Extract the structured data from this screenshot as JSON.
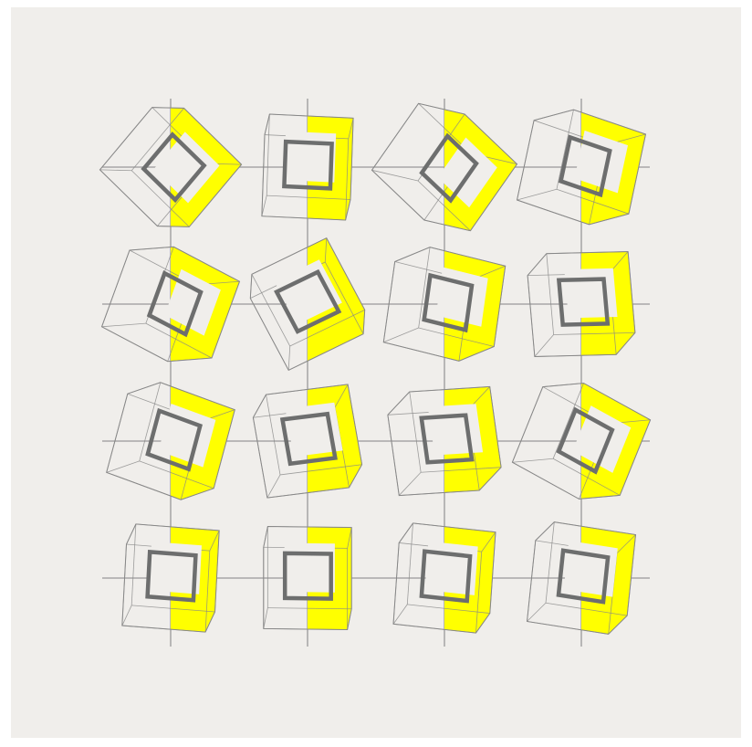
{
  "artwork": {
    "background_color": "#f0eeeb",
    "line_color": "#999999",
    "outline_color": "#888888",
    "fill_color": "#ffff00",
    "stroke_color": "#6d6e6e",
    "grid": {
      "rows": 4,
      "cols": 4
    },
    "cells": [
      {
        "rotation": 40,
        "yaw": 0.3
      },
      {
        "rotation": 2,
        "yaw": 0.05
      },
      {
        "rotation": 35,
        "yaw": 0.55
      },
      {
        "rotation": 12,
        "yaw": 0.45
      },
      {
        "rotation": 20,
        "yaw": 0.5
      },
      {
        "rotation": -28,
        "yaw": 0.15
      },
      {
        "rotation": 8,
        "yaw": 0.4
      },
      {
        "rotation": -5,
        "yaw": 0.25
      },
      {
        "rotation": 15,
        "yaw": 0.35
      },
      {
        "rotation": -10,
        "yaw": 0.2
      },
      {
        "rotation": -8,
        "yaw": 0.3
      },
      {
        "rotation": 22,
        "yaw": 0.45
      },
      {
        "rotation": 3,
        "yaw": 0.1
      },
      {
        "rotation": 0,
        "yaw": 0.05
      },
      {
        "rotation": 4,
        "yaw": 0.15
      },
      {
        "rotation": 6,
        "yaw": 0.2
      }
    ]
  }
}
